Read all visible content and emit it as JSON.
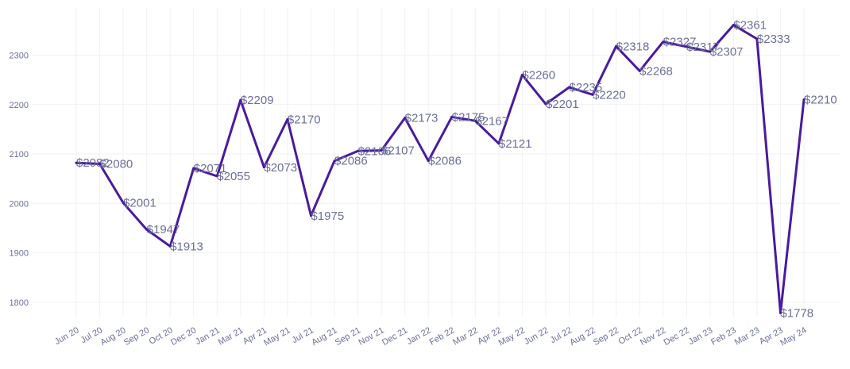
{
  "chart_data": {
    "type": "line",
    "title": "",
    "xlabel": "",
    "ylabel": "",
    "categories": [
      "Jun 20",
      "Jul 20",
      "Aug 20",
      "Sep 20",
      "Oct 20",
      "Dec 20",
      "Jan 21",
      "Mar 21",
      "Apr 21",
      "May 21",
      "Jul 21",
      "Aug 21",
      "Sep 21",
      "Nov 21",
      "Dec 21",
      "Jan 22",
      "Feb 22",
      "Mar 22",
      "Apr 22",
      "May 22",
      "Jun 22",
      "Jul 22",
      "Aug 22",
      "Sep 22",
      "Oct 22",
      "Nov 22",
      "Dec 22",
      "Jan 23",
      "Feb 23",
      "Mar 23",
      "Apr 23",
      "May 24"
    ],
    "series": [
      {
        "values": [
          2082,
          2080,
          2001,
          1947,
          1913,
          2071,
          2055,
          2209,
          2073,
          2170,
          1975,
          2086,
          2106,
          2107,
          2173,
          2086,
          2175,
          2167,
          2121,
          2260,
          2201,
          2235,
          2220,
          2318,
          2268,
          2327,
          2317,
          2307,
          2361,
          2333,
          1778,
          2210
        ],
        "labels": [
          "$2082",
          "$2080",
          "$2001",
          "$1947",
          "$1913",
          "$2071",
          "$2055",
          "$2209",
          "$2073",
          "$2170",
          "$1975",
          "$2086",
          "$2106",
          "$2107",
          "$2173",
          "$2086",
          "$2175",
          "$2167",
          "$2121",
          "$2260",
          "$2201",
          "$2235",
          "$2220",
          "$2318",
          "$2268",
          "$2327",
          "$2317",
          "$2307",
          "$2361",
          "$2333",
          "$1778",
          "$2210"
        ]
      }
    ],
    "y_ticks": [
      "1800",
      "1900",
      "2000",
      "2100",
      "2200",
      "2300"
    ],
    "ylim": [
      1750,
      2375
    ],
    "grid": true,
    "legend": "none",
    "colors": {
      "line": "#4a1aa0",
      "label": "#6b6f9a",
      "tick": "#6b6f9a",
      "grid": "#f1f1f4"
    }
  }
}
